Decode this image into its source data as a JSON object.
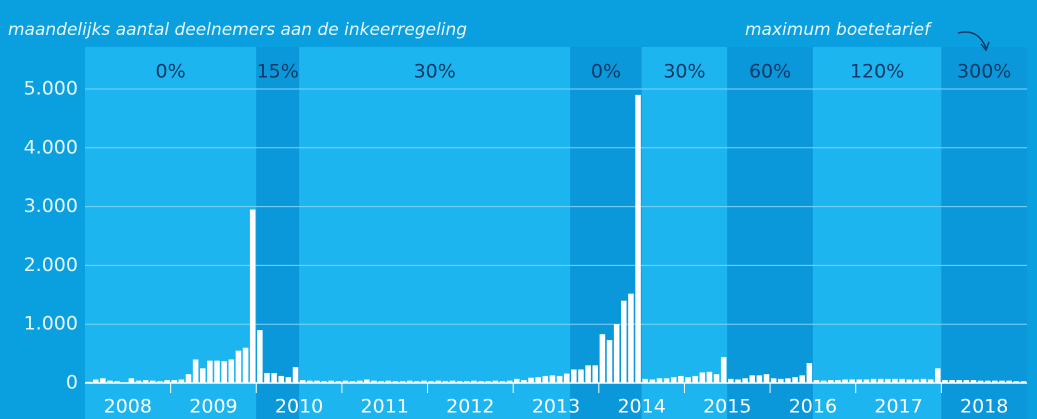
{
  "chart_data": {
    "type": "bar",
    "title": "maandelijks aantal deelnemers aan de inkeerregeling",
    "annotation": "maximum boetetarief",
    "years": [
      "2008",
      "2009",
      "2010",
      "2011",
      "2012",
      "2013",
      "2014",
      "2015",
      "2016",
      "2017",
      "2018"
    ],
    "values": [
      20,
      60,
      80,
      40,
      30,
      10,
      80,
      40,
      50,
      40,
      30,
      50,
      50,
      60,
      150,
      400,
      250,
      380,
      380,
      370,
      400,
      550,
      600,
      2950,
      900,
      170,
      170,
      120,
      100,
      270,
      50,
      40,
      40,
      30,
      40,
      30,
      40,
      30,
      40,
      60,
      40,
      30,
      40,
      30,
      30,
      40,
      30,
      40,
      30,
      40,
      30,
      40,
      30,
      30,
      40,
      30,
      30,
      40,
      30,
      40,
      70,
      50,
      90,
      100,
      120,
      130,
      120,
      160,
      230,
      230,
      300,
      300,
      830,
      730,
      1000,
      1400,
      1520,
      4900,
      70,
      60,
      80,
      80,
      100,
      120,
      100,
      120,
      180,
      190,
      150,
      440,
      70,
      60,
      80,
      130,
      130,
      150,
      80,
      70,
      80,
      100,
      130,
      340,
      50,
      40,
      50,
      50,
      60,
      60,
      60,
      60,
      70,
      70,
      70,
      70,
      70,
      60,
      60,
      70,
      60,
      250,
      50,
      50,
      50,
      50,
      50,
      40,
      40,
      40,
      40,
      40,
      30,
      30
    ],
    "color": "#ffffff",
    "bands": [
      {
        "label": "0%",
        "start": 0,
        "end": 24,
        "color": "#1db5ef"
      },
      {
        "label": "15%",
        "start": 24,
        "end": 30,
        "color": "#0a98da"
      },
      {
        "label": "30%",
        "start": 30,
        "end": 68,
        "color": "#1db5ef"
      },
      {
        "label": "0%",
        "start": 68,
        "end": 78,
        "color": "#0a98da"
      },
      {
        "label": "30%",
        "start": 78,
        "end": 90,
        "color": "#1db5ef"
      },
      {
        "label": "60%",
        "start": 90,
        "end": 102,
        "color": "#0a98da"
      },
      {
        "label": "120%",
        "start": 102,
        "end": 120,
        "color": "#1db5ef"
      },
      {
        "label": "300%",
        "start": 120,
        "end": 132,
        "color": "#0a98da"
      }
    ],
    "ylim": [
      0,
      5000
    ],
    "yticks": [
      0,
      {
        "value": 1000,
        "label": "1.000"
      },
      {
        "value": 2000,
        "label": "2.000"
      },
      {
        "value": 3000,
        "label": "3.000"
      },
      {
        "value": 4000,
        "label": "4.000"
      },
      {
        "value": 5000,
        "label": "5.000"
      }
    ],
    "grid": true
  }
}
